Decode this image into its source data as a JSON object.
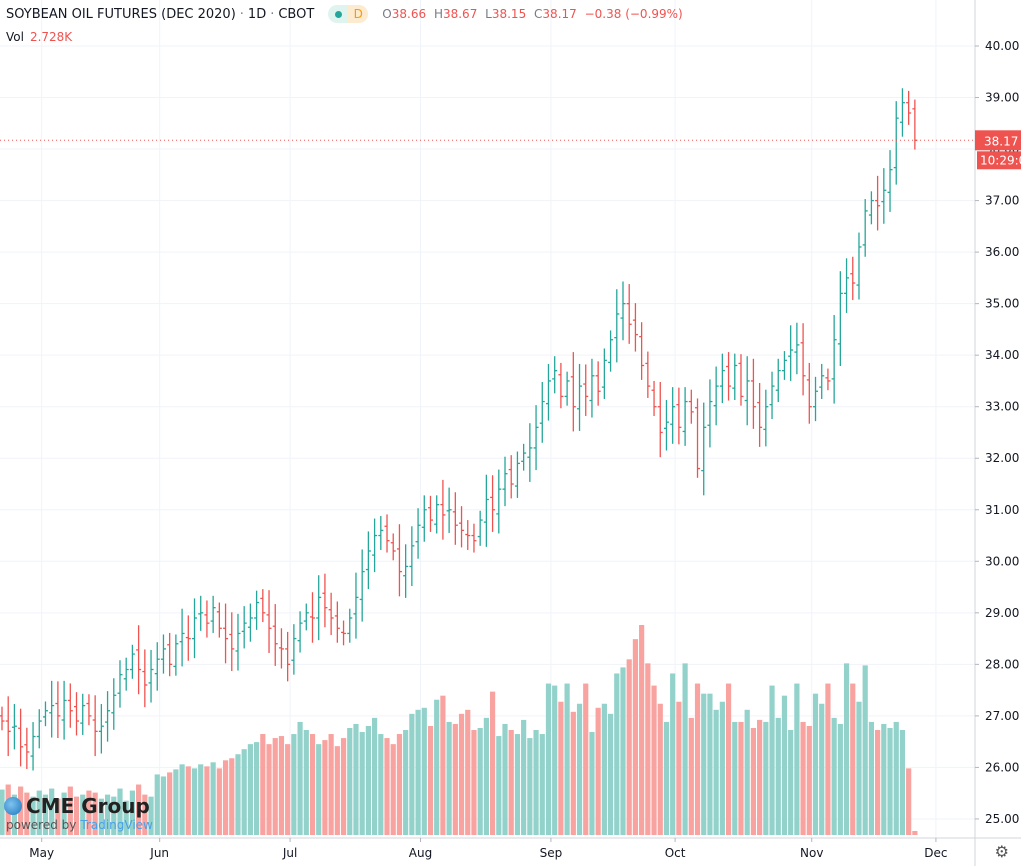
{
  "header": {
    "title": "SOYBEAN OIL FUTURES (DEC 2020)",
    "interval": "1D",
    "exchange": "CBOT",
    "status_badge": "D",
    "ohlc": {
      "o_label": "O",
      "o": "38.66",
      "h_label": "H",
      "h": "38.67",
      "l_label": "L",
      "l": "38.15",
      "c_label": "C",
      "c": "38.17",
      "change": "−0.38 (−0.99%)"
    },
    "vol_label": "Vol",
    "vol_value": "2.728K"
  },
  "branding": {
    "logo": "CME Group",
    "powered_by": "powered by",
    "tradingview": "TradingView"
  },
  "price_tag": {
    "price": "38.17",
    "countdown": "10:29:0"
  },
  "colors": {
    "up": "#26a69a",
    "down": "#ef5350",
    "vol_up": "#92d2cb",
    "vol_down": "#f8a3a0",
    "grid": "#f0f3fa"
  },
  "icons": {
    "settings": "gear-icon"
  },
  "chart_data": {
    "type": "ohlc-bar",
    "title": "SOYBEAN OIL FUTURES (DEC 2020)",
    "ylim": [
      25,
      40
    ],
    "y_ticks": [
      "40.00",
      "39.00",
      "38.00",
      "37.00",
      "36.00",
      "35.00",
      "34.00",
      "33.00",
      "32.00",
      "31.00",
      "30.00",
      "29.00",
      "28.00",
      "27.00",
      "26.00",
      "25.00"
    ],
    "x_ticks": [
      {
        "label": "May",
        "bar": 8
      },
      {
        "label": "Jun",
        "bar": 27
      },
      {
        "label": "Jul",
        "bar": 48
      },
      {
        "label": "Aug",
        "bar": 69
      },
      {
        "label": "Sep",
        "bar": 90
      },
      {
        "label": "Oct",
        "bar": 110
      },
      {
        "label": "Nov",
        "bar": 132
      },
      {
        "label": "Dec",
        "bar": 152
      }
    ],
    "close": [
      26.9,
      26.7,
      26.8,
      26.4,
      26.3,
      26.6,
      26.9,
      27.1,
      27.2,
      27.0,
      27.3,
      27.1,
      26.9,
      27.2,
      27.0,
      26.7,
      26.8,
      27.1,
      27.4,
      27.8,
      27.9,
      28.2,
      27.9,
      27.6,
      27.9,
      28.1,
      28.3,
      28.0,
      28.4,
      28.6,
      28.5,
      28.9,
      29.0,
      28.8,
      29.1,
      28.7,
      28.5,
      28.3,
      28.6,
      28.8,
      28.9,
      29.2,
      29.0,
      28.7,
      28.4,
      28.3,
      28.0,
      28.5,
      28.8,
      29.0,
      28.9,
      29.3,
      29.1,
      28.9,
      28.7,
      28.6,
      28.9,
      29.3,
      29.8,
      30.2,
      30.5,
      30.6,
      30.4,
      30.2,
      29.8,
      29.9,
      30.3,
      30.7,
      31.0,
      30.8,
      31.1,
      30.9,
      31.0,
      30.7,
      30.6,
      30.5,
      30.4,
      30.8,
      31.2,
      31.0,
      31.4,
      31.7,
      31.5,
      31.9,
      32.1,
      32.2,
      32.6,
      33.1,
      33.5,
      33.7,
      33.2,
      33.5,
      33.0,
      33.4,
      33.2,
      33.6,
      33.3,
      33.9,
      34.3,
      34.8,
      35.0,
      34.6,
      34.4,
      33.8,
      33.4,
      33.0,
      32.5,
      32.7,
      33.0,
      32.6,
      33.1,
      32.9,
      31.8,
      32.6,
      33.1,
      33.4,
      33.7,
      33.4,
      33.8,
      33.2,
      33.5,
      33.0,
      32.6,
      33.0,
      33.4,
      33.7,
      33.9,
      34.1,
      34.2,
      33.6,
      33.0,
      33.3,
      33.6,
      33.5,
      34.3,
      35.2,
      35.5,
      35.4,
      36.1,
      36.8,
      37.0,
      36.9,
      37.2,
      37.6,
      38.6,
      38.9,
      38.7,
      38.17
    ],
    "volume_relative": [
      45,
      50,
      40,
      48,
      42,
      38,
      44,
      40,
      46,
      36,
      42,
      48,
      38,
      40,
      44,
      42,
      36,
      40,
      38,
      46,
      34,
      44,
      50,
      40,
      38,
      60,
      58,
      62,
      65,
      70,
      68,
      66,
      70,
      68,
      72,
      66,
      74,
      76,
      80,
      85,
      90,
      92,
      100,
      90,
      96,
      98,
      90,
      100,
      112,
      104,
      100,
      90,
      94,
      100,
      88,
      96,
      106,
      110,
      102,
      108,
      116,
      100,
      96,
      90,
      100,
      104,
      120,
      124,
      126,
      108,
      134,
      138,
      112,
      110,
      120,
      124,
      104,
      106,
      116,
      142,
      98,
      110,
      104,
      100,
      114,
      96,
      104,
      100,
      150,
      148,
      132,
      150,
      122,
      130,
      150,
      102,
      126,
      130,
      120,
      160,
      166,
      174,
      194,
      208,
      170,
      148,
      130,
      112,
      160,
      132,
      170,
      116,
      150,
      140,
      140,
      124,
      132,
      150,
      112,
      112,
      124,
      106,
      114,
      112,
      148,
      116,
      138,
      104,
      150,
      112,
      108,
      140,
      130,
      150,
      116,
      110,
      170,
      150,
      132,
      168,
      112,
      104,
      110,
      106,
      112,
      104,
      66,
      4
    ]
  }
}
